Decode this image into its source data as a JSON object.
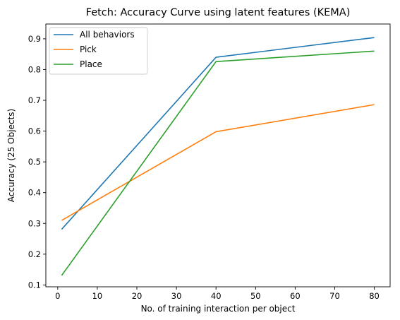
{
  "chart_data": {
    "type": "line",
    "title": "Fetch: Accuracy Curve using latent features (KEMA)",
    "xlabel": "No. of training interaction per object",
    "ylabel": "Accuracy (25 Objects)",
    "x": [
      1,
      40,
      80
    ],
    "xlim": [
      -3.0,
      84.0
    ],
    "ylim": [
      0.094,
      0.948
    ],
    "xticks": [
      0,
      10,
      20,
      30,
      40,
      50,
      60,
      70,
      80
    ],
    "yticks": [
      0.1,
      0.2,
      0.3,
      0.4,
      0.5,
      0.6,
      0.7,
      0.8,
      0.9
    ],
    "grid": false,
    "legend_position": "top-left",
    "series": [
      {
        "name": "All behaviors",
        "color": "#1f77b4",
        "values": [
          0.281,
          0.84,
          0.904
        ]
      },
      {
        "name": "Pick",
        "color": "#ff7f0e",
        "values": [
          0.31,
          0.598,
          0.686
        ]
      },
      {
        "name": "Place",
        "color": "#2ca02c",
        "values": [
          0.131,
          0.826,
          0.86
        ]
      }
    ]
  }
}
